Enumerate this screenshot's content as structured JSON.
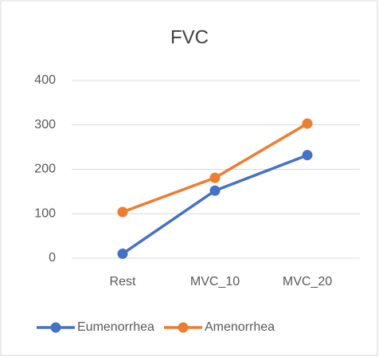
{
  "chart_data": {
    "type": "line",
    "title": "FVC",
    "categories": [
      "Rest",
      "MVC_10",
      "MVC_20"
    ],
    "series": [
      {
        "name": "Eumenorrhea",
        "color": "#4472c4",
        "values": [
          10,
          152,
          232
        ]
      },
      {
        "name": "Amenorrhea",
        "color": "#ed7d31",
        "values": [
          104,
          181,
          303
        ]
      }
    ],
    "ylim": [
      0,
      400
    ],
    "yticks": [
      0,
      100,
      200,
      300,
      400
    ],
    "grid": true,
    "legend": "bottom"
  }
}
